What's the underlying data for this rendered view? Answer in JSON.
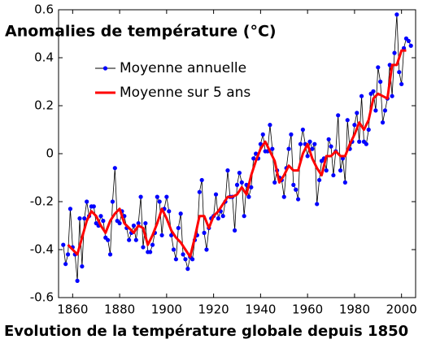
{
  "chart_data": {
    "type": "line",
    "title": "Evolution de la température globale depuis 1850",
    "y_label": "Anomalies de température (°C)",
    "xlim": [
      1854,
      2006
    ],
    "xticks": [
      1860,
      1880,
      1900,
      1920,
      1940,
      1960,
      1980,
      2000
    ],
    "ylim": [
      -0.6,
      0.6
    ],
    "yticks": [
      -0.6,
      -0.4,
      -0.2,
      0,
      0.2,
      0.4,
      0.6
    ],
    "grid": false,
    "legend": "upper left",
    "series": [
      {
        "name": "Moyenne annuelle",
        "color": "#000000",
        "marker_color": "#0000ff",
        "marker": true,
        "x": [
          1856,
          1857,
          1858,
          1859,
          1860,
          1861,
          1862,
          1863,
          1864,
          1865,
          1866,
          1867,
          1868,
          1869,
          1870,
          1871,
          1872,
          1873,
          1874,
          1875,
          1876,
          1877,
          1878,
          1879,
          1880,
          1881,
          1882,
          1883,
          1884,
          1885,
          1886,
          1887,
          1888,
          1889,
          1890,
          1891,
          1892,
          1893,
          1894,
          1895,
          1896,
          1897,
          1898,
          1899,
          1900,
          1901,
          1902,
          1903,
          1904,
          1905,
          1906,
          1907,
          1908,
          1909,
          1910,
          1911,
          1912,
          1913,
          1914,
          1915,
          1916,
          1917,
          1918,
          1919,
          1920,
          1921,
          1922,
          1923,
          1924,
          1925,
          1926,
          1927,
          1928,
          1929,
          1930,
          1931,
          1932,
          1933,
          1934,
          1935,
          1936,
          1937,
          1938,
          1939,
          1940,
          1941,
          1942,
          1943,
          1944,
          1945,
          1946,
          1947,
          1948,
          1949,
          1950,
          1951,
          1952,
          1953,
          1954,
          1955,
          1956,
          1957,
          1958,
          1959,
          1960,
          1961,
          1962,
          1963,
          1964,
          1965,
          1966,
          1967,
          1968,
          1969,
          1970,
          1971,
          1972,
          1973,
          1974,
          1975,
          1976,
          1977,
          1978,
          1979,
          1980,
          1981,
          1982,
          1983,
          1984,
          1985,
          1986,
          1987,
          1988,
          1989,
          1990,
          1991,
          1992,
          1993,
          1994,
          1995,
          1996,
          1997,
          1998,
          1999,
          2000,
          2001,
          2002,
          2003,
          2004
        ],
        "values": [
          -0.38,
          -0.46,
          -0.42,
          -0.23,
          -0.39,
          -0.42,
          -0.53,
          -0.27,
          -0.47,
          -0.27,
          -0.2,
          -0.26,
          -0.22,
          -0.22,
          -0.29,
          -0.3,
          -0.26,
          -0.28,
          -0.35,
          -0.36,
          -0.42,
          -0.2,
          -0.06,
          -0.28,
          -0.29,
          -0.24,
          -0.26,
          -0.31,
          -0.36,
          -0.33,
          -0.3,
          -0.36,
          -0.29,
          -0.18,
          -0.39,
          -0.29,
          -0.41,
          -0.41,
          -0.38,
          -0.33,
          -0.18,
          -0.2,
          -0.34,
          -0.23,
          -0.18,
          -0.24,
          -0.34,
          -0.4,
          -0.44,
          -0.31,
          -0.25,
          -0.42,
          -0.44,
          -0.48,
          -0.43,
          -0.44,
          -0.36,
          -0.34,
          -0.16,
          -0.11,
          -0.33,
          -0.4,
          -0.31,
          -0.27,
          -0.26,
          -0.17,
          -0.27,
          -0.24,
          -0.26,
          -0.2,
          -0.07,
          -0.18,
          -0.18,
          -0.32,
          -0.13,
          -0.08,
          -0.12,
          -0.26,
          -0.13,
          -0.18,
          -0.14,
          -0.02,
          0.0,
          -0.02,
          0.04,
          0.08,
          0.01,
          0.01,
          0.12,
          0.02,
          -0.12,
          -0.07,
          -0.1,
          -0.11,
          -0.18,
          -0.06,
          0.02,
          0.08,
          -0.13,
          -0.15,
          -0.19,
          0.04,
          0.1,
          0.04,
          -0.01,
          0.05,
          0.02,
          0.04,
          -0.21,
          -0.11,
          -0.03,
          -0.02,
          -0.07,
          0.06,
          0.03,
          -0.09,
          0.01,
          0.16,
          -0.07,
          -0.02,
          -0.12,
          0.14,
          0.02,
          0.05,
          0.12,
          0.17,
          0.05,
          0.24,
          0.05,
          0.04,
          0.1,
          0.25,
          0.26,
          0.18,
          0.36,
          0.3,
          0.13,
          0.18,
          0.23,
          0.37,
          0.24,
          0.42,
          0.58,
          0.34,
          0.29,
          0.44,
          0.48,
          0.47,
          0.45
        ]
      },
      {
        "name": "Moyenne sur 5 ans",
        "color": "#ff0000",
        "marker": false,
        "x": [
          1858,
          1860,
          1862,
          1864,
          1866,
          1868,
          1870,
          1872,
          1874,
          1876,
          1878,
          1880,
          1882,
          1884,
          1886,
          1888,
          1890,
          1892,
          1894,
          1896,
          1898,
          1900,
          1902,
          1904,
          1906,
          1908,
          1910,
          1912,
          1914,
          1916,
          1918,
          1920,
          1922,
          1924,
          1926,
          1928,
          1930,
          1932,
          1934,
          1936,
          1938,
          1940,
          1942,
          1944,
          1946,
          1948,
          1950,
          1952,
          1954,
          1956,
          1958,
          1960,
          1962,
          1964,
          1966,
          1968,
          1970,
          1972,
          1974,
          1976,
          1978,
          1980,
          1982,
          1984,
          1986,
          1988,
          1990,
          1992,
          1994,
          1996,
          1998,
          2000,
          2002
        ],
        "values": [
          -0.38,
          -0.4,
          -0.42,
          -0.35,
          -0.28,
          -0.24,
          -0.26,
          -0.3,
          -0.33,
          -0.28,
          -0.25,
          -0.23,
          -0.29,
          -0.31,
          -0.33,
          -0.3,
          -0.31,
          -0.38,
          -0.34,
          -0.29,
          -0.23,
          -0.27,
          -0.32,
          -0.35,
          -0.37,
          -0.4,
          -0.43,
          -0.35,
          -0.26,
          -0.26,
          -0.31,
          -0.26,
          -0.24,
          -0.21,
          -0.18,
          -0.18,
          -0.17,
          -0.14,
          -0.17,
          -0.09,
          -0.03,
          0.02,
          0.05,
          0.01,
          -0.03,
          -0.12,
          -0.09,
          -0.05,
          -0.07,
          -0.07,
          0.0,
          0.04,
          -0.02,
          -0.06,
          -0.09,
          -0.01,
          -0.01,
          0.01,
          -0.01,
          -0.01,
          0.04,
          0.08,
          0.13,
          0.1,
          0.14,
          0.23,
          0.25,
          0.24,
          0.23,
          0.37,
          0.37,
          0.43,
          0.43
        ]
      }
    ]
  }
}
